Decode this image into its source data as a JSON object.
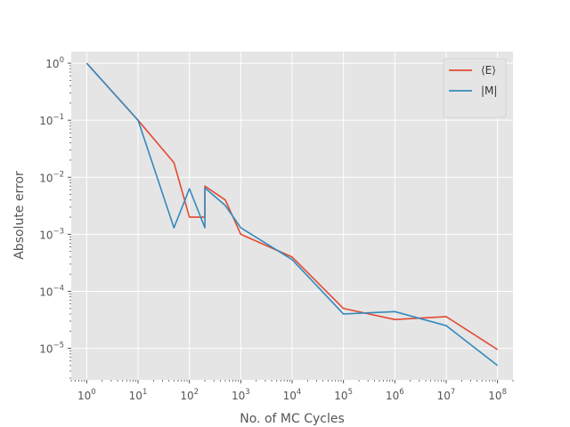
{
  "chart_data": {
    "type": "line",
    "title": "",
    "xlabel": "No. of MC Cycles",
    "ylabel": "Absolute error",
    "xscale": "log",
    "yscale": "log",
    "xlim": [
      0.5,
      200000000
    ],
    "ylim": [
      2.8e-06,
      1.6
    ],
    "x_ticks": [
      "10^0",
      "10^1",
      "10^2",
      "10^3",
      "10^4",
      "10^5",
      "10^6",
      "10^7",
      "10^8"
    ],
    "y_ticks": [
      "10^-5",
      "10^-4",
      "10^-3",
      "10^-2",
      "10^-1",
      "10^0"
    ],
    "grid": true,
    "legend_position": "top-right",
    "style": "ggplot",
    "series": [
      {
        "name": "⟨E⟩",
        "color": "#E24A33",
        "x": [
          1,
          10,
          50,
          100,
          200,
          200,
          500,
          1000,
          10000,
          100000,
          1000000,
          10000000,
          100000000
        ],
        "y": [
          1.0,
          0.1,
          0.018,
          0.002,
          0.002,
          0.007,
          0.004,
          0.001,
          0.0004,
          5e-05,
          3.2e-05,
          3.6e-05,
          9.5e-06
        ]
      },
      {
        "name": "|M|",
        "color": "#348ABD",
        "x": [
          1,
          10,
          50,
          100,
          200,
          200,
          500,
          1000,
          10000,
          100000,
          1000000,
          10000000,
          100000000
        ],
        "y": [
          1.0,
          0.1,
          0.0013,
          0.0063,
          0.0013,
          0.0065,
          0.0032,
          0.0013,
          0.00036,
          4e-05,
          4.4e-05,
          2.5e-05,
          5e-06
        ]
      }
    ]
  }
}
